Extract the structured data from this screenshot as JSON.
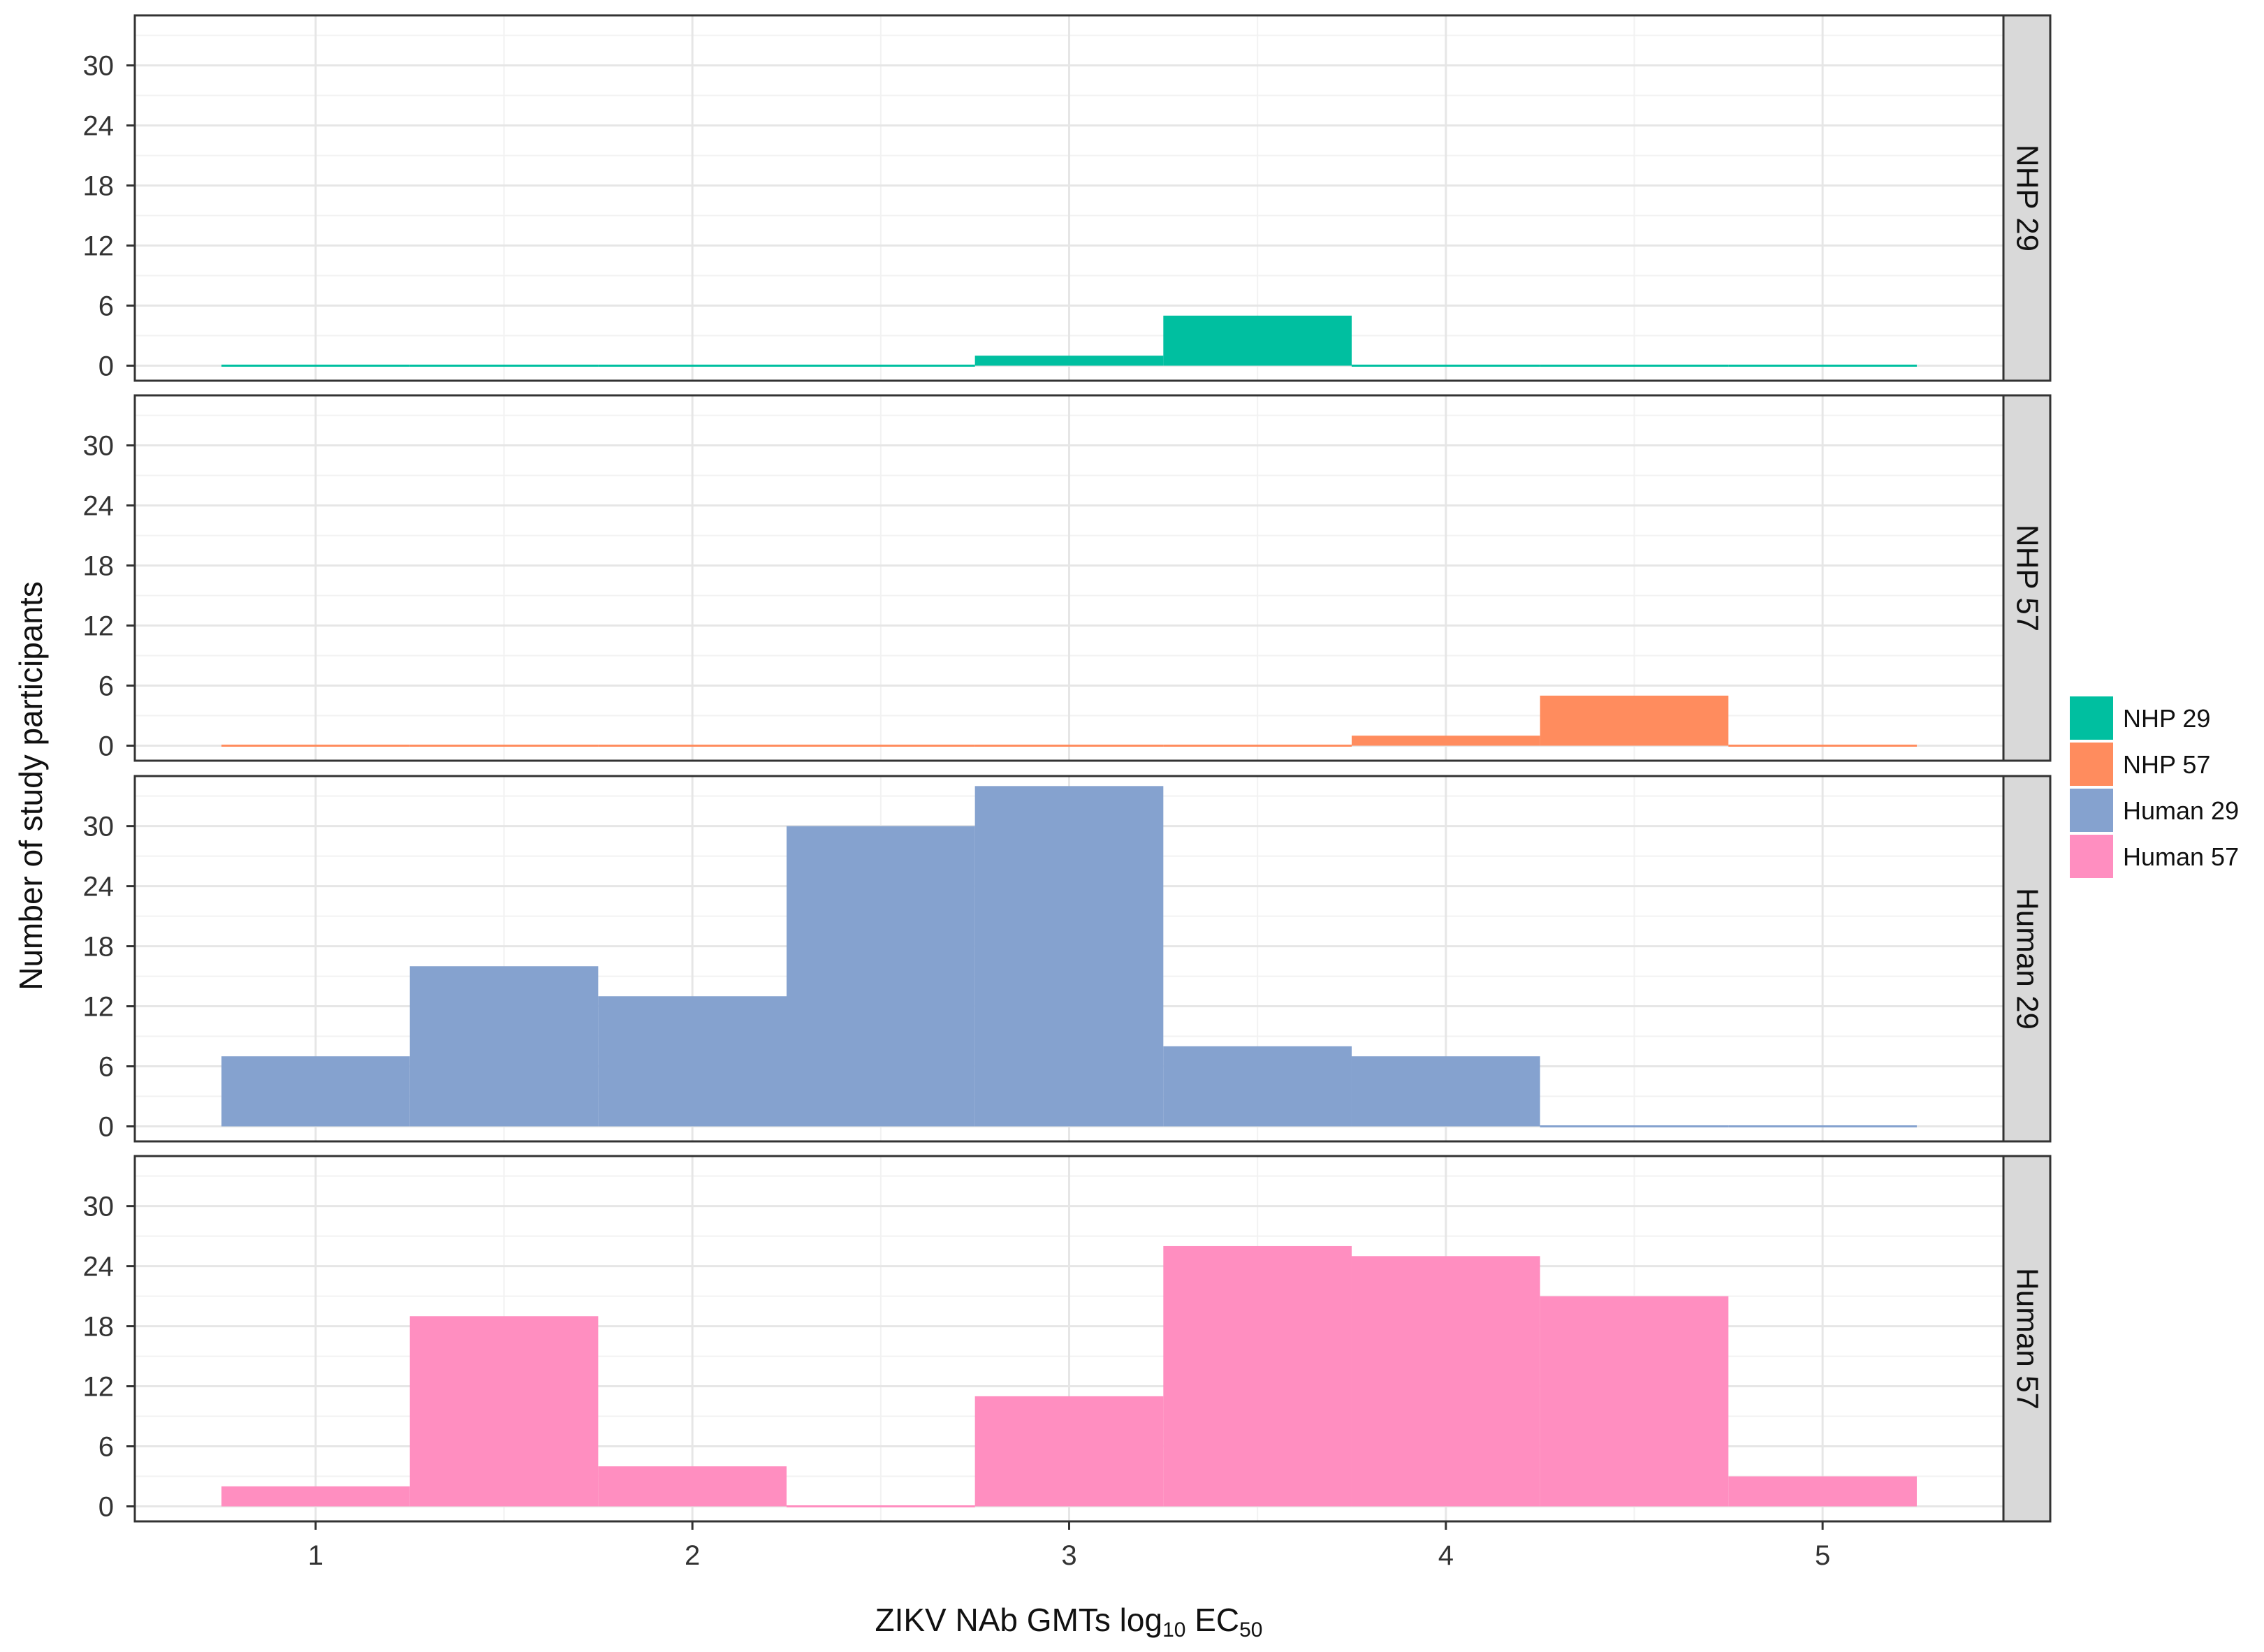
{
  "chart_data": {
    "type": "histogram",
    "xlabel": "ZIKV NAb GMTs log",
    "xlabel_sub": "10",
    "xlabel_tail": " EC",
    "xlabel_tail_sub": "50",
    "ylabel": "Number of study participants",
    "xlim": [
      0.52,
      5.48
    ],
    "xticks": [
      1,
      2,
      3,
      4,
      5
    ],
    "ylim": [
      -1.5,
      35
    ],
    "yticks": [
      0,
      6,
      12,
      18,
      24,
      30
    ],
    "grid": true,
    "legend_position": "right",
    "bin_edges": [
      0.75,
      1.25,
      1.75,
      2.25,
      2.75,
      3.25,
      3.75,
      4.25,
      4.75,
      5.25
    ],
    "series": [
      {
        "name": "NHP 29",
        "panel_label": "NHP 29",
        "color": "#00BFA0",
        "values": [
          0,
          0,
          0,
          0,
          1,
          5,
          0,
          0,
          0
        ]
      },
      {
        "name": "NHP 57",
        "panel_label": "NHP 57",
        "color": "#FF8C5E",
        "values": [
          0,
          0,
          0,
          0,
          0,
          0,
          1,
          5,
          0
        ]
      },
      {
        "name": "Human 29",
        "panel_label": "Human 29",
        "color": "#85A2CF",
        "values": [
          7,
          16,
          13,
          30,
          34,
          8,
          7,
          0,
          0
        ]
      },
      {
        "name": "Human 57",
        "panel_label": "Human 57",
        "color": "#FF8EC0",
        "values": [
          2,
          19,
          4,
          0,
          11,
          26,
          25,
          21,
          3
        ]
      }
    ]
  }
}
